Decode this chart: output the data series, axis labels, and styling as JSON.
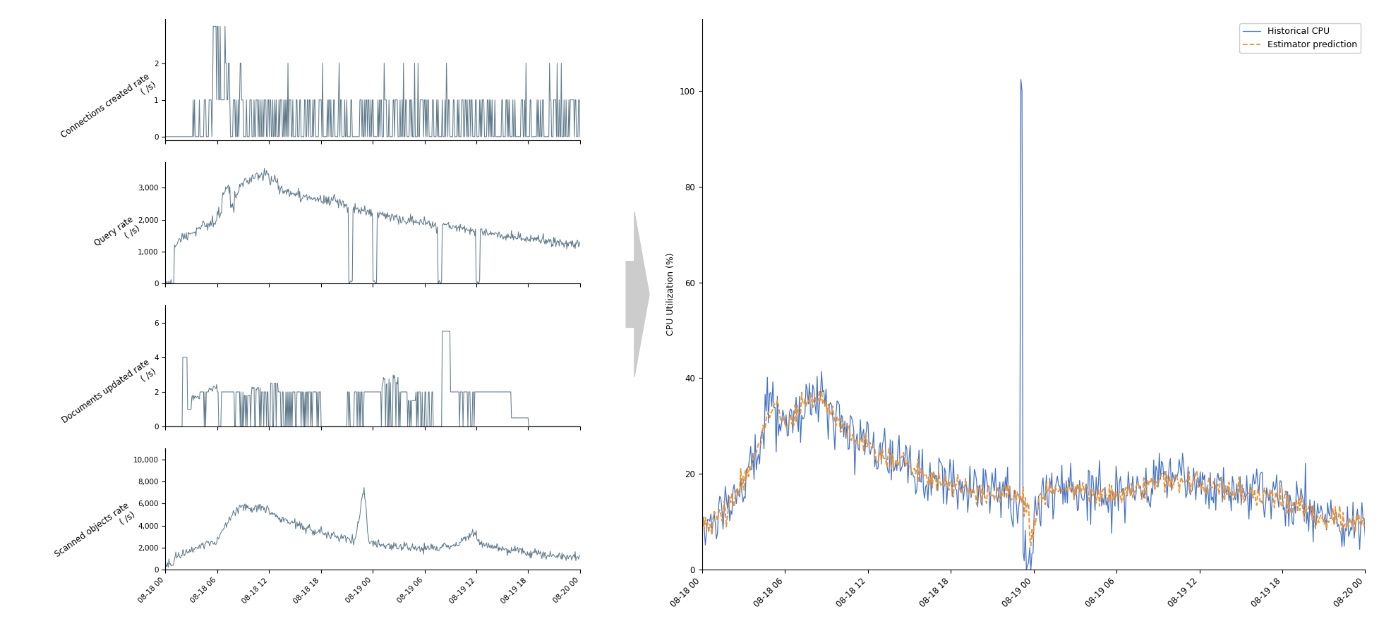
{
  "fig_width": 19.54,
  "fig_height": 8.98,
  "background_color": "#ffffff",
  "line_color_inputs": "#607b8b",
  "line_color_cpu": "#4472c4",
  "line_color_est": "#e5923a",
  "ylabel_cpu": "CPU Utilization (%)",
  "legend_cpu": "Historical CPU",
  "legend_est": "Estimator prediction",
  "ylabels": [
    "Connections created rate\n( /s)",
    "Query rate\n( /s)",
    "Documents updated rate\n( /s)",
    "Scanned objects rate\n( /s)"
  ],
  "yticks_conn": [
    0,
    1,
    2
  ],
  "yticks_query": [
    0,
    1000,
    2000,
    3000
  ],
  "yticks_docs": [
    0,
    2,
    4,
    6
  ],
  "yticks_scanned": [
    0,
    2000,
    4000,
    6000,
    8000,
    10000
  ],
  "xtick_labels": [
    "08-18 00",
    "08-18 06",
    "08-18 12",
    "08-18 18",
    "08-19 00",
    "08-19 06",
    "08-19 12",
    "08-19 18",
    "08-20 00"
  ],
  "n_points": 600
}
